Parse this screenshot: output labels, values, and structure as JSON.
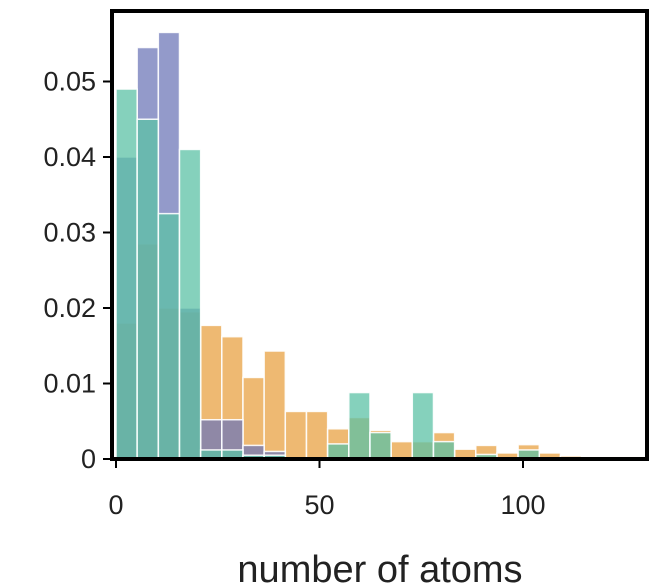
{
  "chart_data": {
    "type": "bar",
    "subtype": "overlapping histogram",
    "title": "",
    "xlabel": "number of atoms",
    "ylabel": "",
    "xlim": [
      0,
      130
    ],
    "ylim": [
      0,
      0.0595
    ],
    "x_ticks": [
      0,
      50,
      100
    ],
    "x_tick_labels": [
      "0",
      "50",
      "100"
    ],
    "y_ticks": [
      0,
      0.01,
      0.02,
      0.03,
      0.04,
      0.05
    ],
    "y_tick_labels": [
      "0",
      "0.01",
      "0.02",
      "0.03",
      "0.04",
      "0.05"
    ],
    "grid": false,
    "legend": "none",
    "bin_width": 5.2,
    "bin_starts": [
      0,
      5.2,
      10.4,
      15.6,
      20.8,
      26,
      31.2,
      36.4,
      41.6,
      46.8,
      52,
      57.2,
      62.4,
      67.6,
      72.8,
      78,
      83.2,
      88.4,
      93.6,
      98.8,
      104,
      109.2,
      114.4,
      119.6,
      124.8
    ],
    "series": [
      {
        "color": "#e8a243",
        "values": [
          0.018,
          0.0285,
          0.02,
          0.0195,
          0.0177,
          0.0162,
          0.0108,
          0.0143,
          0.0063,
          0.0063,
          0.004,
          0.0055,
          0.0038,
          0.0023,
          0.0023,
          0.0035,
          0.0013,
          0.0018,
          0.0008,
          0.0019,
          0.0008,
          0.0004,
          0.0003,
          0.0003,
          0.0003
        ]
      },
      {
        "color": "#6f78b8",
        "values": [
          0.04,
          0.0545,
          0.0565,
          0.02,
          0.0052,
          0.0052,
          0.0018,
          0.001,
          0.0,
          0.0,
          0.0,
          0.0,
          0.0,
          0.0,
          0.0,
          0.0,
          0.0,
          0.0,
          0.0,
          0.0,
          0.0,
          0.0,
          0.0,
          0.0,
          0.0
        ]
      },
      {
        "color": "#5cc2a6",
        "values": [
          0.049,
          0.045,
          0.0325,
          0.041,
          0.0012,
          0.0012,
          0.0005,
          0.0005,
          0.0,
          0.0,
          0.002,
          0.0088,
          0.0035,
          0.0,
          0.0088,
          0.0023,
          0.0,
          0.0006,
          0.0,
          0.0012,
          0.0,
          0.0,
          0.0,
          0.0,
          0.0
        ]
      }
    ]
  }
}
